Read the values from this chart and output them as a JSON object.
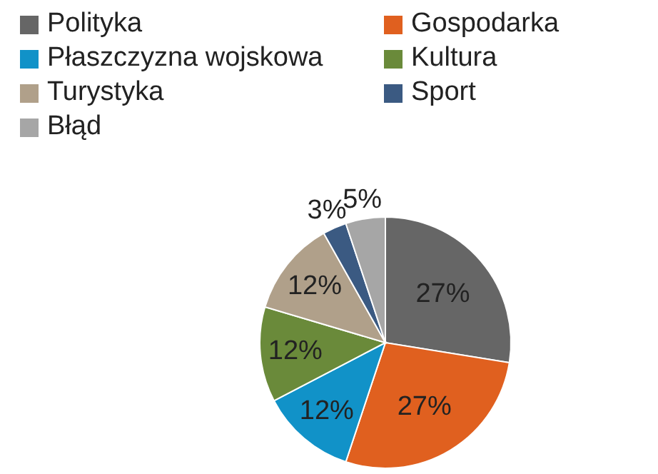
{
  "chart_data": {
    "type": "pie",
    "categories": [
      "Polityka",
      "Gospodarka",
      "Płaszczyzna wojskowa",
      "Kultura",
      "Turystyka",
      "Sport",
      "Błąd"
    ],
    "values": [
      27,
      27,
      12,
      12,
      12,
      3,
      5
    ],
    "colors": [
      "#666666",
      "#e0601f",
      "#1192c8",
      "#6a8a3a",
      "#b0a08a",
      "#3b5a82",
      "#a6a6a6"
    ],
    "value_labels": [
      "27%",
      "27%",
      "12%",
      "12%",
      "12%",
      "3%",
      "5%"
    ],
    "legend": "top"
  }
}
